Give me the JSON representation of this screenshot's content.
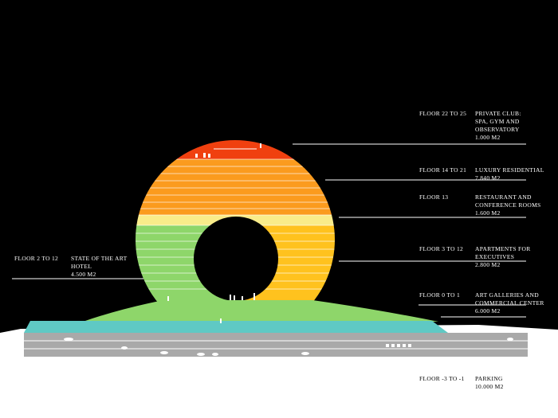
{
  "colors": {
    "background": "#000000",
    "ground": "#ffffff",
    "parking": "#a9a9a9",
    "podium": "#5fc9c4",
    "mound": "#8ed66a",
    "hotel": "#8ed66a",
    "apartments": "#ffc21e",
    "restaurant": "#f9ec8a",
    "residential": "#fb9b1e",
    "club": "#f0400f"
  },
  "labels": [
    {
      "floor": "FLOOR 22 TO 25",
      "lines": [
        "PRIVATE CLUB:",
        "SPA, GYM AND",
        "OBSERVATORY",
        "1.000 M2"
      ]
    },
    {
      "floor": "FLOOR 14 TO 21",
      "lines": [
        "LUXURY RESIDENTIAL",
        "7.840 M2"
      ]
    },
    {
      "floor": "FLOOR 13",
      "lines": [
        "RESTAURANT AND",
        "CONFERENCE ROOMS",
        "1.600 M2"
      ]
    },
    {
      "floor": "FLOOR 3 TO 12",
      "lines": [
        "APARTMENTS FOR",
        "EXECUTIVES",
        "2.800 M2"
      ]
    },
    {
      "floor": "FLOOR 0 TO 1",
      "lines": [
        "ART GALLERIES AND",
        "COMMERCIAL CENTER",
        "6.000 M2"
      ]
    },
    {
      "floor": "FLOOR 2 TO 12",
      "lines": [
        "STATE OF THE ART",
        "HOTEL",
        "4.500 M2"
      ]
    },
    {
      "floor": "FLOOR -3 TO -1",
      "lines": [
        "PARKING",
        "10.000 M2"
      ]
    }
  ]
}
